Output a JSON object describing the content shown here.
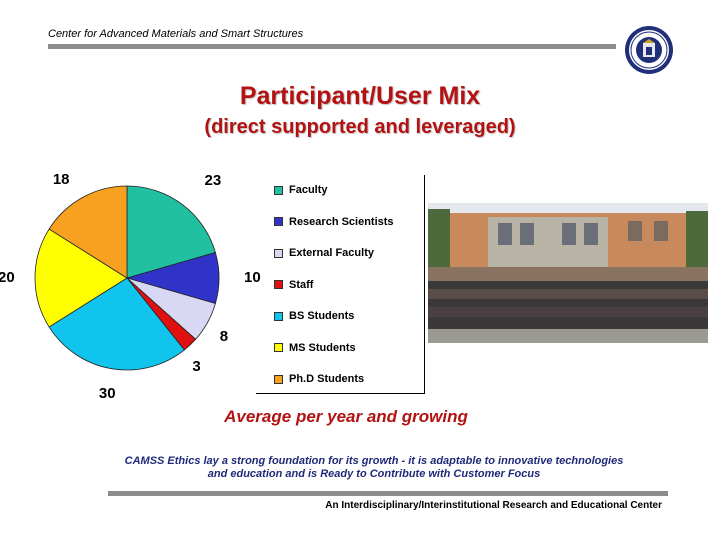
{
  "header": {
    "title": "Center for Advanced Materials and Smart Structures",
    "seal_icon": "university-seal-icon"
  },
  "title": "Participant/User  Mix",
  "subtitle": "(direct supported and leveraged)",
  "chart_data": {
    "type": "pie",
    "title": "",
    "slices": [
      {
        "label": "Faculty",
        "value": 23,
        "color": "#20c0a0"
      },
      {
        "label": "Research Scientists",
        "value": 10,
        "color": "#2f33c8"
      },
      {
        "label": "External Faculty",
        "value": 8,
        "color": "#d8d8f4"
      },
      {
        "label": "Staff",
        "value": 3,
        "color": "#e01010"
      },
      {
        "label": "BS Students",
        "value": 30,
        "color": "#10c4ee"
      },
      {
        "label": "MS Students",
        "value": 20,
        "color": "#ffff00"
      },
      {
        "label": "Ph.D Students",
        "value": 18,
        "color": "#f8a020"
      }
    ],
    "legend_position": "right"
  },
  "photo_icon": "group-photo-icon",
  "caption": "Average per year and growing",
  "body_line1": "CAMSS Ethics lay a strong foundation for its growth - it is adaptable to innovative technologies",
  "body_line2": "and education and is Ready to Contribute with Customer Focus",
  "footer": "An Interdisciplinary/Interinstitutional Research and Educational Center"
}
